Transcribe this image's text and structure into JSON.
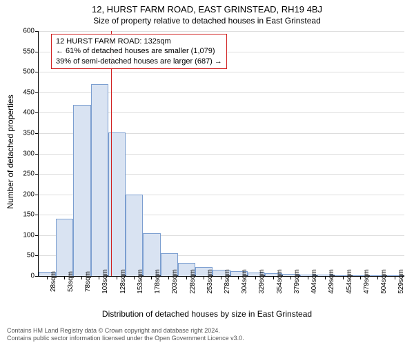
{
  "title": "12, HURST FARM ROAD, EAST GRINSTEAD, RH19 4BJ",
  "subtitle": "Size of property relative to detached houses in East Grinstead",
  "ylabel": "Number of detached properties",
  "xlabel": "Distribution of detached houses by size in East Grinstead",
  "chart": {
    "type": "histogram",
    "ylim": [
      0,
      600
    ],
    "ytick_step": 50,
    "background_color": "#ffffff",
    "grid_color": "#dddddd",
    "bar_fill": "#d9e3f2",
    "bar_stroke": "#7b9ed0",
    "marker_color": "#d02020",
    "categories": [
      "28sqm",
      "53sqm",
      "78sqm",
      "103sqm",
      "128sqm",
      "153sqm",
      "178sqm",
      "203sqm",
      "228sqm",
      "253sqm",
      "278sqm",
      "304sqm",
      "329sqm",
      "354sqm",
      "379sqm",
      "404sqm",
      "429sqm",
      "454sqm",
      "479sqm",
      "504sqm",
      "529sqm"
    ],
    "values": [
      10,
      140,
      420,
      470,
      352,
      200,
      105,
      55,
      32,
      22,
      16,
      12,
      8,
      6,
      5,
      3,
      3,
      2,
      2,
      2,
      2
    ],
    "highlight_index": 4,
    "marker_position": 4.16
  },
  "annotation": {
    "line1": "12 HURST FARM ROAD: 132sqm",
    "line2": "← 61% of detached houses are smaller (1,079)",
    "line3": "39% of semi-detached houses are larger (687) →"
  },
  "footer": {
    "line1": "Contains HM Land Registry data © Crown copyright and database right 2024.",
    "line2": "Contains public sector information licensed under the Open Government Licence v3.0."
  }
}
